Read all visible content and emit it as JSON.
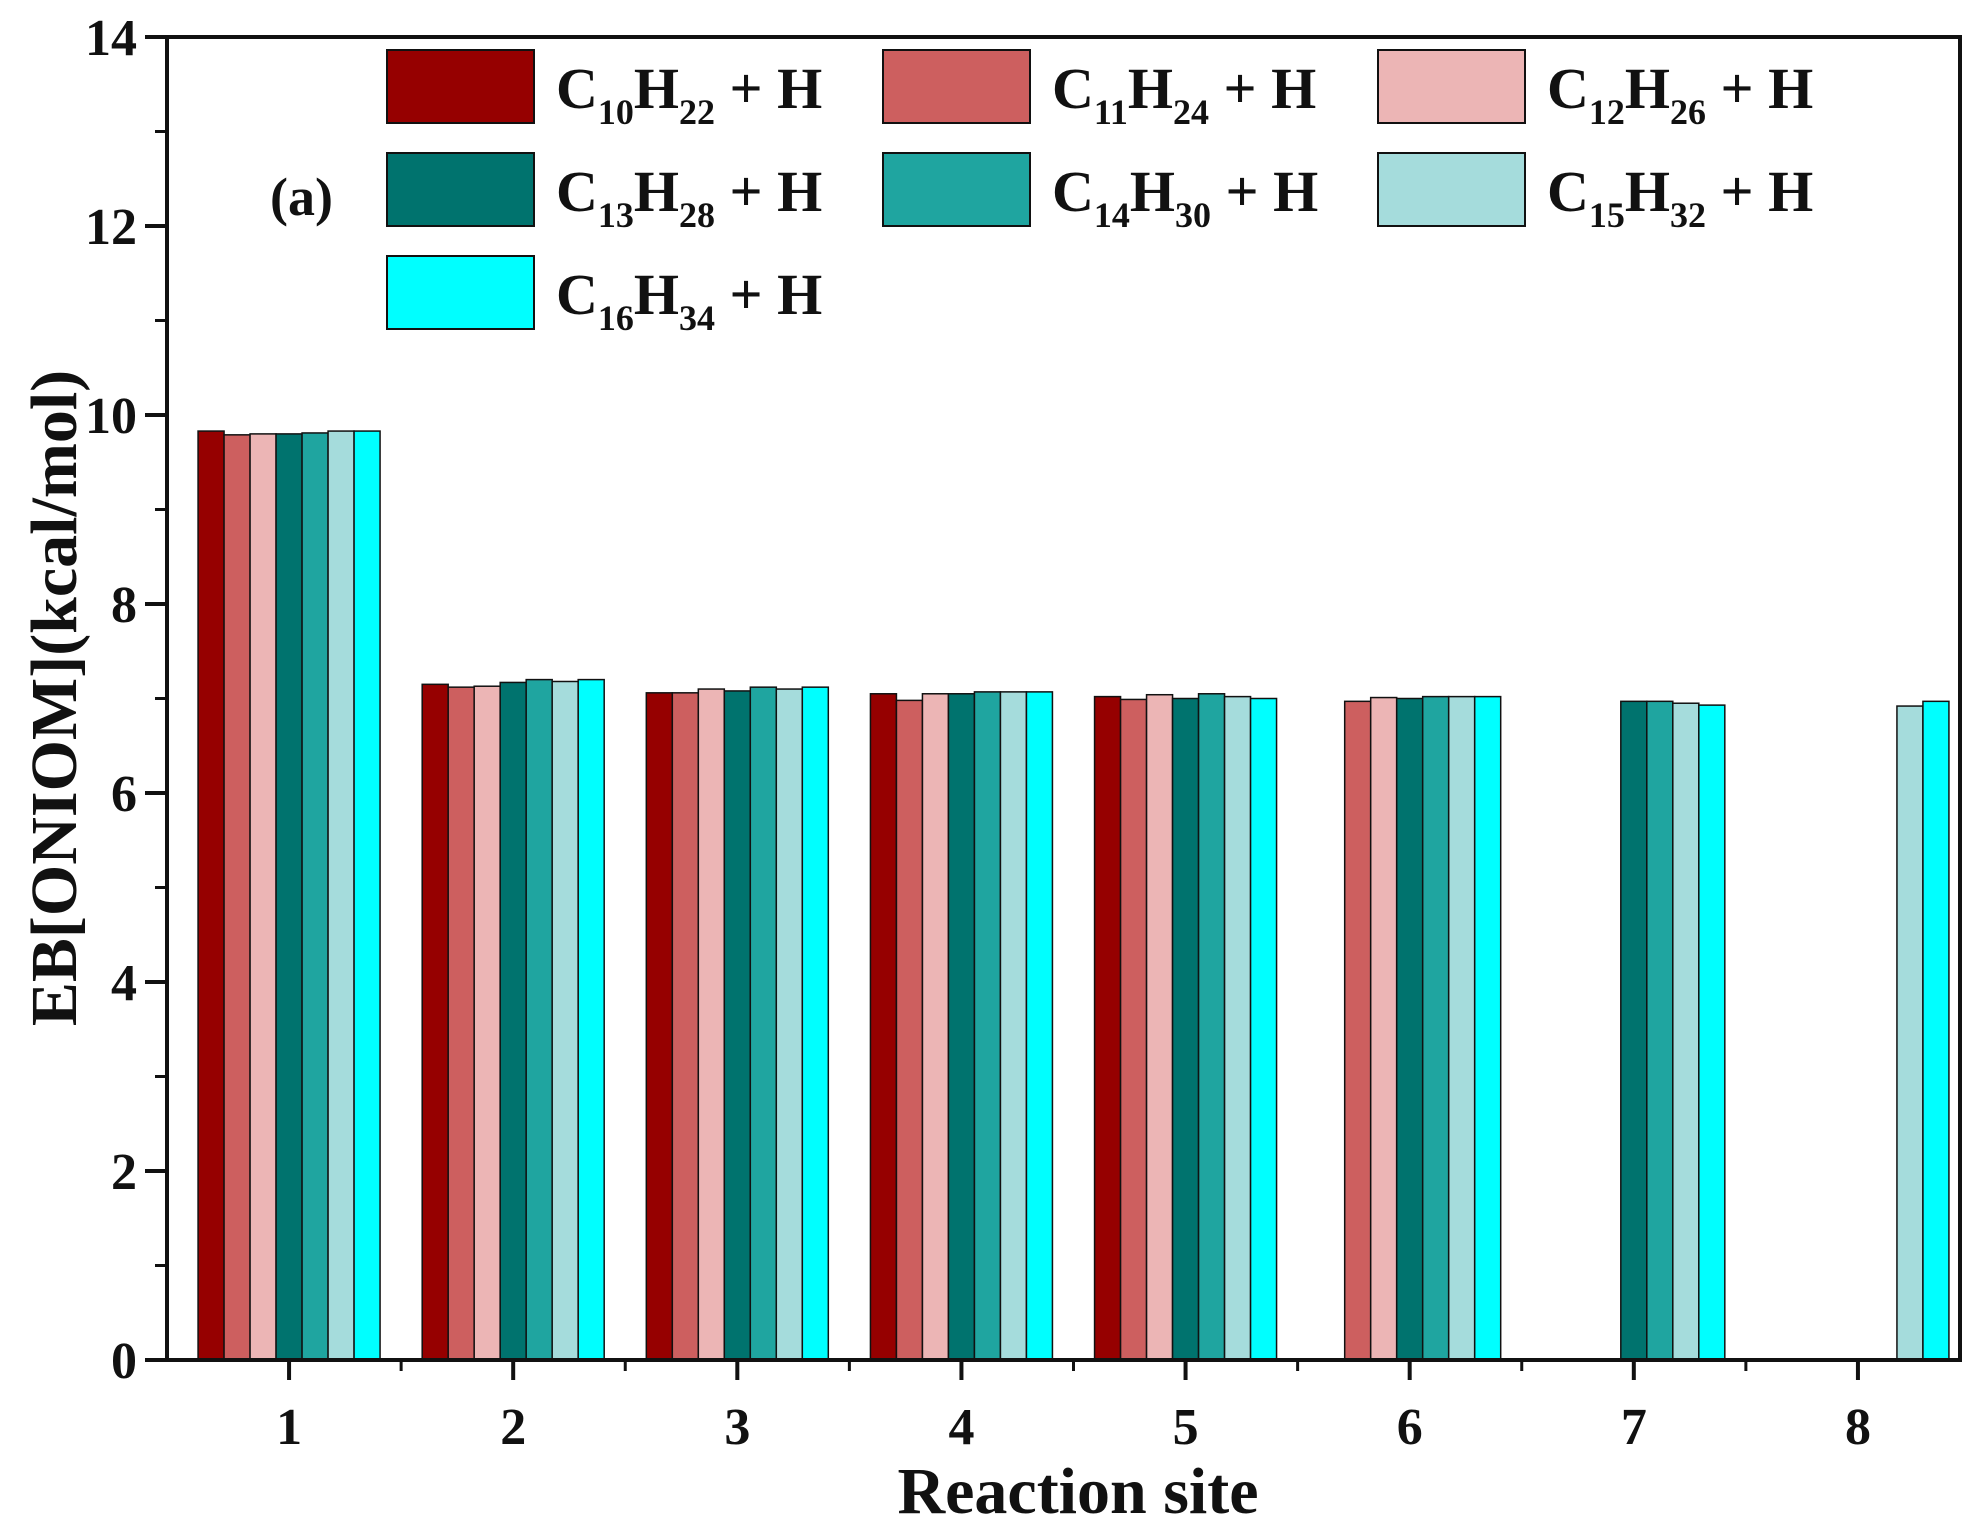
{
  "chart_data": {
    "type": "bar",
    "title": "",
    "panel_label": "(a)",
    "xlabel": "Reaction site",
    "ylabel": "EB[ONIOM](kcal/mol)",
    "ylim": [
      0,
      14
    ],
    "yticks": [
      0,
      2,
      4,
      6,
      8,
      10,
      12,
      14
    ],
    "categories": [
      "1",
      "2",
      "3",
      "4",
      "5",
      "6",
      "7",
      "8"
    ],
    "legend_position": "top",
    "series": [
      {
        "name": "C10H22 + H",
        "label": {
          "c": "C",
          "cn": "10",
          "h": "H",
          "hn": "22",
          "tail": " + H"
        },
        "color": "#960000",
        "values": [
          9.83,
          7.15,
          7.06,
          7.05,
          7.02,
          null,
          null,
          null
        ]
      },
      {
        "name": "C11H24 + H",
        "label": {
          "c": "C",
          "cn": "11",
          "h": "H",
          "hn": "24",
          "tail": " + H"
        },
        "color": "#cd5f5f",
        "values": [
          9.79,
          7.12,
          7.06,
          6.98,
          6.99,
          6.97,
          null,
          null
        ]
      },
      {
        "name": "C12H26 + H",
        "label": {
          "c": "C",
          "cn": "12",
          "h": "H",
          "hn": "26",
          "tail": " + H"
        },
        "color": "#ecb5b5",
        "values": [
          9.8,
          7.13,
          7.1,
          7.05,
          7.04,
          7.01,
          null,
          null
        ]
      },
      {
        "name": "C13H28 + H",
        "label": {
          "c": "C",
          "cn": "13",
          "h": "H",
          "hn": "28",
          "tail": " + H"
        },
        "color": "#00736e",
        "values": [
          9.8,
          7.17,
          7.08,
          7.05,
          7.0,
          7.0,
          6.97,
          null
        ]
      },
      {
        "name": "C14H30 + H",
        "label": {
          "c": "C",
          "cn": "14",
          "h": "H",
          "hn": "30",
          "tail": " + H"
        },
        "color": "#1fa5a0",
        "values": [
          9.81,
          7.2,
          7.12,
          7.07,
          7.05,
          7.02,
          6.97,
          null
        ]
      },
      {
        "name": "C15H32 + H",
        "label": {
          "c": "C",
          "cn": "15",
          "h": "H",
          "hn": "32",
          "tail": " + H"
        },
        "color": "#a5dcdc",
        "values": [
          9.83,
          7.18,
          7.1,
          7.07,
          7.02,
          7.02,
          6.95,
          6.92
        ]
      },
      {
        "name": "C16H34 + H",
        "label": {
          "c": "C",
          "cn": "16",
          "h": "H",
          "hn": "34",
          "tail": " + H"
        },
        "color": "#00ffff",
        "values": [
          9.83,
          7.2,
          7.12,
          7.07,
          7.0,
          7.02,
          6.93,
          6.97
        ]
      }
    ]
  }
}
